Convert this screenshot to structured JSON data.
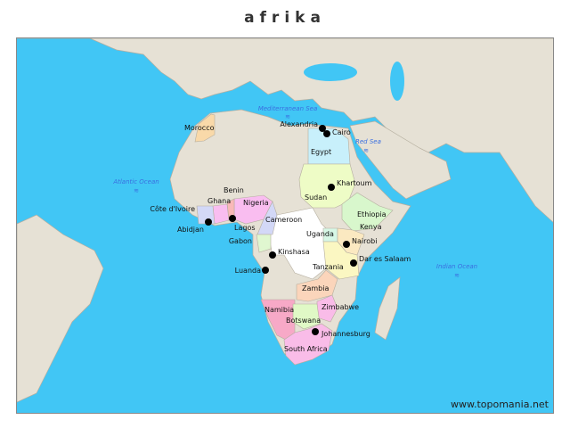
{
  "title": "afrika",
  "credit": "www.topomania.net",
  "colors": {
    "ocean": "#41c6f5",
    "land": "#e6e1d5",
    "border": "#b5ae9f",
    "marker": "#000000",
    "sea_label": "#3a6fe0"
  },
  "seas": [
    {
      "name": "Mediterranean Sea",
      "icon": "waves-icon"
    },
    {
      "name": "Red Sea",
      "icon": "waves-icon"
    },
    {
      "name": "Atlantic Ocean",
      "icon": "waves-icon"
    },
    {
      "name": "Indian Ocean",
      "icon": "waves-icon"
    }
  ],
  "countries": [
    "Morocco",
    "Egypt",
    "Sudan",
    "Ethiopia",
    "Nigeria",
    "Cameroon",
    "Ghana",
    "Benin",
    "Côte d'Ivoire",
    "Gabon",
    "Uganda",
    "Kenya",
    "Tanzania",
    "Zambia",
    "Zimbabwe",
    "Namibia",
    "Botswana",
    "South Africa"
  ],
  "cities": [
    "Alexandria",
    "Cairo",
    "Khartoum",
    "Abidjan",
    "Lagos",
    "Kinshasa",
    "Luanda",
    "Nairobi",
    "Dar es Salaam",
    "Johannesburg"
  ]
}
